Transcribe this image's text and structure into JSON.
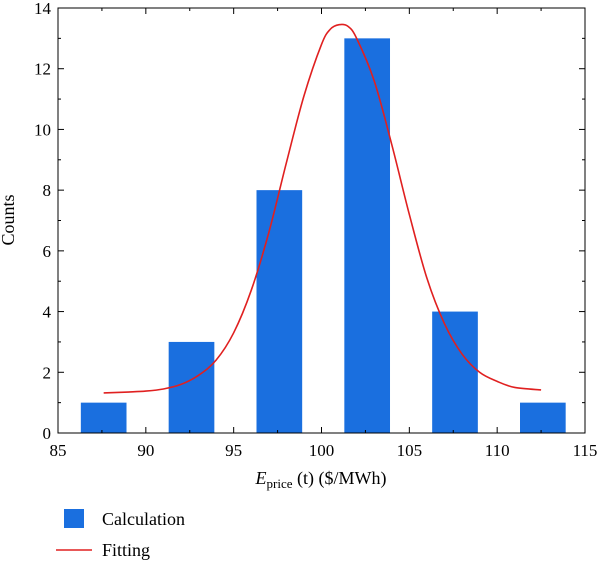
{
  "chart_data": {
    "type": "bar",
    "xlabel_main": "E",
    "xlabel_sub": "price",
    "xlabel_rest": " (t) ($/MWh)",
    "ylabel": "Counts",
    "xlim": [
      85,
      115
    ],
    "ylim": [
      0,
      14
    ],
    "x_ticks": [
      "85",
      "90",
      "95",
      "100",
      "105",
      "110",
      "115"
    ],
    "y_ticks": [
      "0",
      "2",
      "4",
      "6",
      "8",
      "10",
      "12",
      "14"
    ],
    "bars": [
      {
        "x_start": 86.3,
        "x_end": 88.9,
        "value": 1
      },
      {
        "x_start": 91.3,
        "x_end": 93.9,
        "value": 3
      },
      {
        "x_start": 96.3,
        "x_end": 98.9,
        "value": 8
      },
      {
        "x_start": 101.3,
        "x_end": 103.9,
        "value": 13
      },
      {
        "x_start": 106.3,
        "x_end": 108.9,
        "value": 4
      },
      {
        "x_start": 111.3,
        "x_end": 113.9,
        "value": 1
      }
    ],
    "fit_curve": {
      "x": [
        87.6,
        89,
        90,
        91,
        92,
        93,
        94,
        95,
        96,
        97,
        98,
        99,
        100,
        100.5,
        101,
        101.5,
        102,
        103,
        104,
        105,
        106,
        107,
        108,
        109,
        110,
        111,
        112.5
      ],
      "y": [
        1.32,
        1.35,
        1.38,
        1.45,
        1.6,
        1.9,
        2.4,
        3.3,
        4.7,
        6.6,
        8.9,
        11.1,
        12.8,
        13.3,
        13.45,
        13.4,
        13.0,
        11.6,
        9.5,
        7.2,
        5.1,
        3.6,
        2.6,
        2.0,
        1.7,
        1.5,
        1.42
      ]
    },
    "legend": [
      {
        "label": "Calculation",
        "color": "#1a6fdf",
        "kind": "bar"
      },
      {
        "label": "Fitting",
        "color": "#e02020",
        "kind": "line"
      }
    ],
    "legend_position": "bottom-left",
    "bar_color": "#1a6fdf",
    "line_color": "#e02020"
  }
}
